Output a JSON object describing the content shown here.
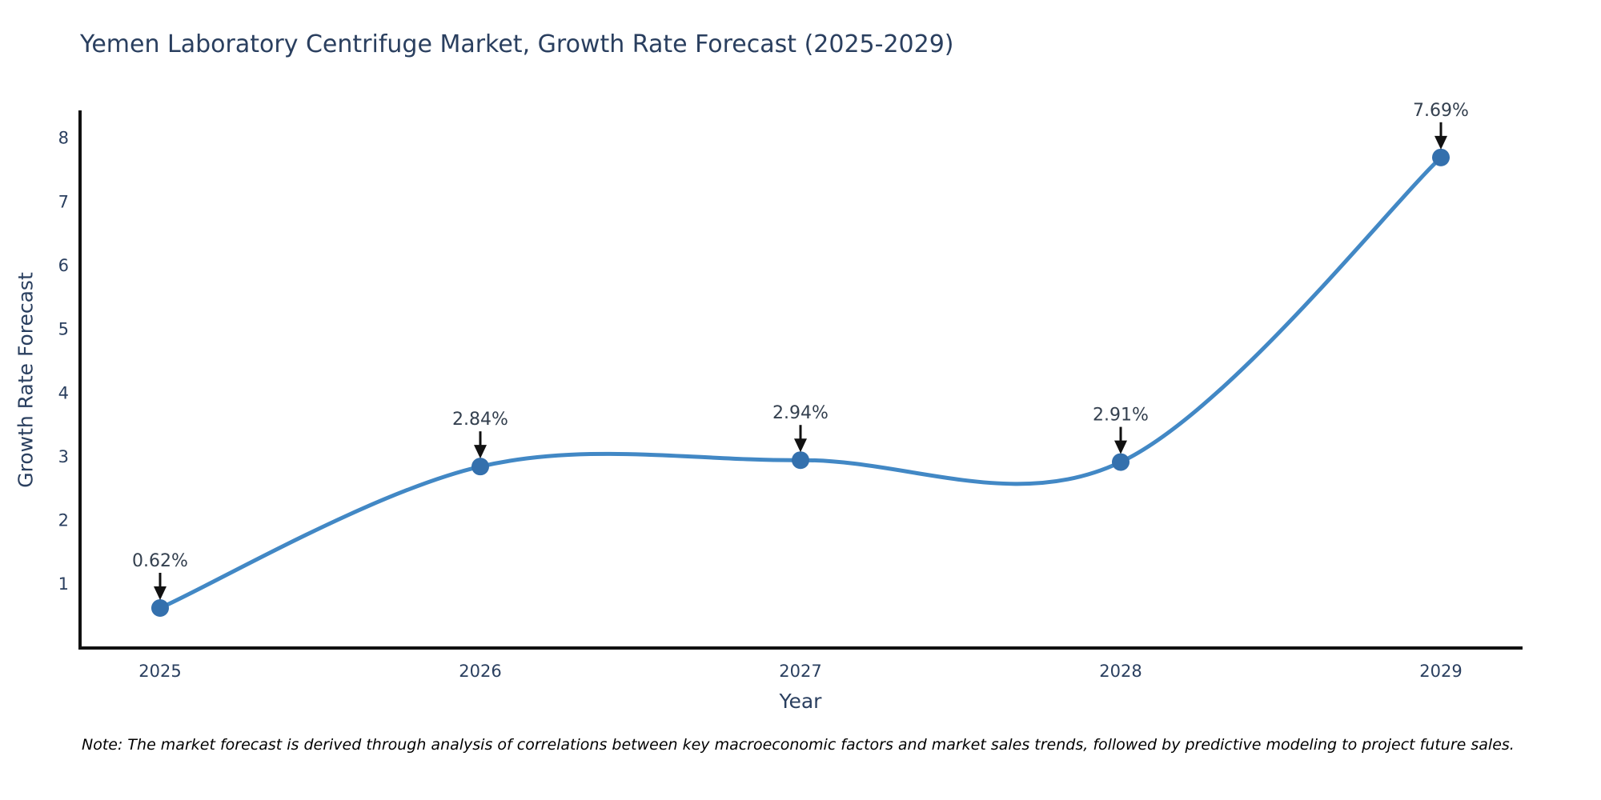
{
  "chart": {
    "title": "Yemen Laboratory Centrifuge Market, Growth Rate Forecast (2025-2029)",
    "note": "Note: The market forecast is derived through analysis of correlations between key macroeconomic factors and market sales trends, followed by predictive modeling to project future sales."
  },
  "chart_data": {
    "type": "line",
    "title": "Yemen Laboratory Centrifuge Market, Growth Rate Forecast (2025-2029)",
    "categories": [
      "2025",
      "2026",
      "2027",
      "2028",
      "2029"
    ],
    "x": [
      2025,
      2026,
      2027,
      2028,
      2029
    ],
    "values": [
      0.62,
      2.84,
      2.94,
      2.91,
      7.69
    ],
    "point_labels": [
      "0.62%",
      "2.84%",
      "2.94%",
      "2.91%",
      "7.69%"
    ],
    "series": [
      {
        "name": "Growth Rate Forecast",
        "values": [
          0.62,
          2.84,
          2.94,
          2.91,
          7.69
        ]
      }
    ],
    "xlabel": "Year",
    "ylabel": "Growth Rate Forecast",
    "ylim": [
      0,
      8.45
    ],
    "yticks": [
      1,
      2,
      3,
      4,
      5,
      6,
      7,
      8
    ],
    "line_shape": "spline",
    "grid": false,
    "legend_position": "none",
    "colors": {
      "line": "#4288c5",
      "marker": "#3470ad",
      "arrow": "#111111",
      "axis": "#111111",
      "text": "#2a3f5f",
      "annotation_text": "#34404f",
      "note_text": "#000000",
      "background": "#ffffff"
    }
  }
}
